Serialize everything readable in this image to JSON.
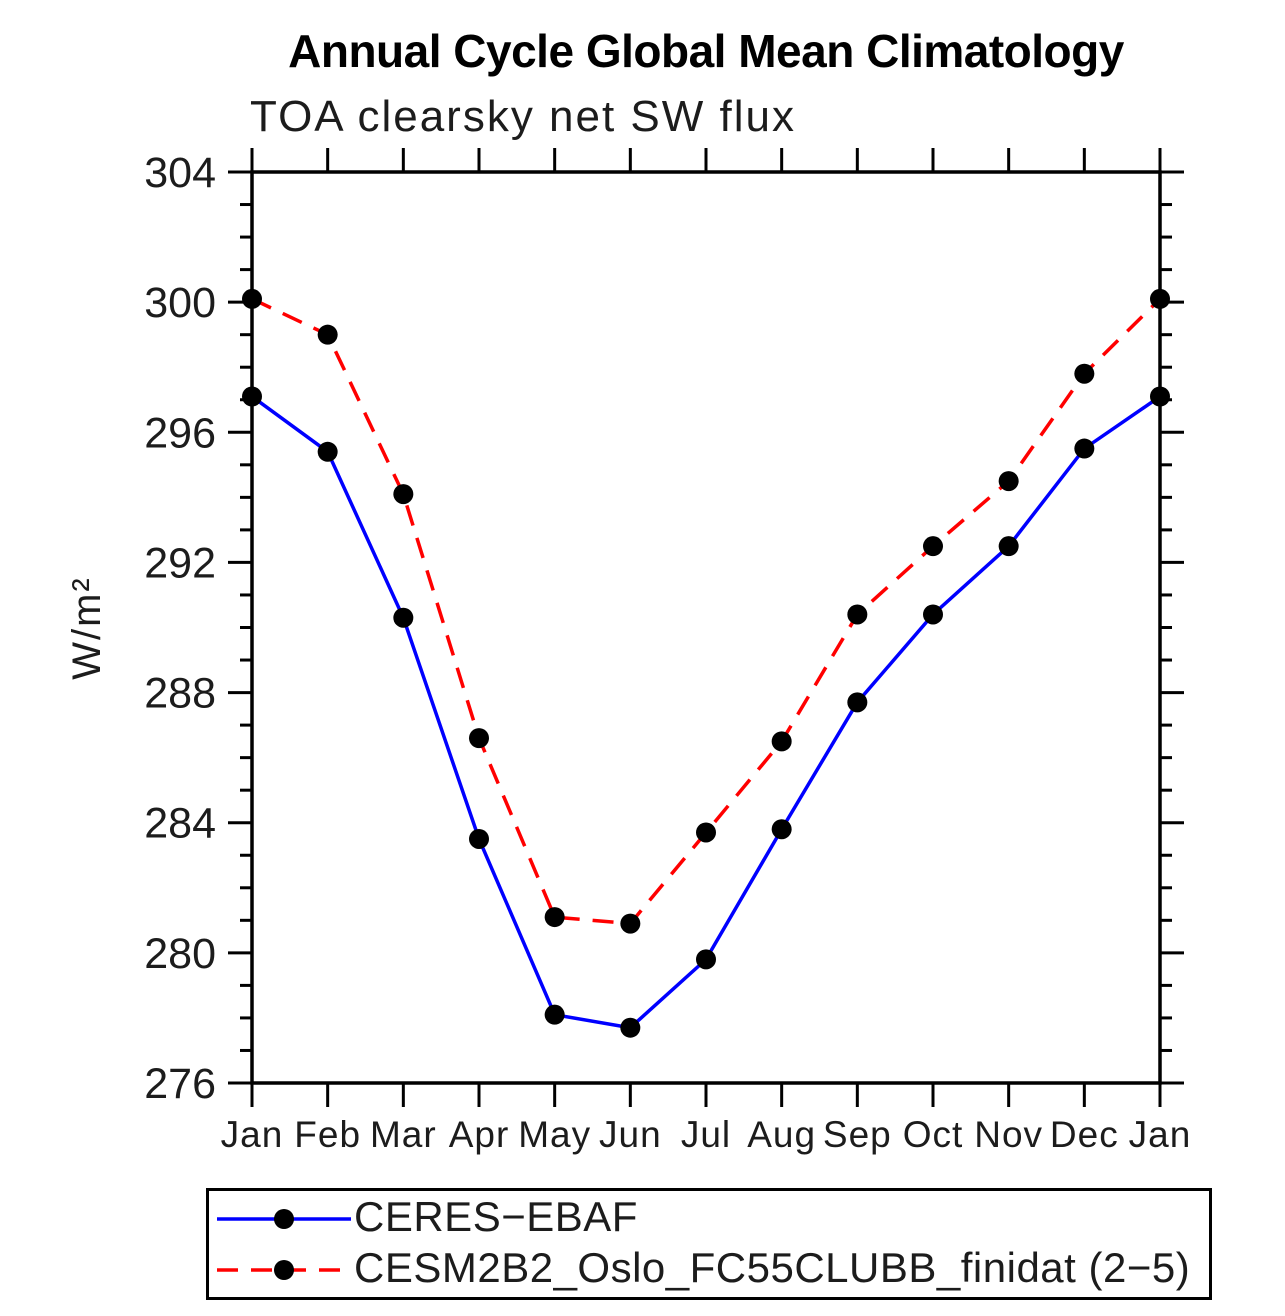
{
  "header": {
    "title": "Annual Cycle Global Mean Climatology",
    "subtitle": "TOA clearsky net SW flux"
  },
  "chart_data": {
    "type": "line",
    "title": "Annual Cycle Global Mean Climatology",
    "subtitle": "TOA clearsky net SW flux",
    "xlabel": "",
    "ylabel": "W/m²",
    "ylim": [
      276,
      304
    ],
    "ytick_major_interval": 4,
    "ytick_minor_interval": 1,
    "ytick_labels": [
      "276",
      "280",
      "284",
      "288",
      "292",
      "296",
      "300",
      "304"
    ],
    "categories": [
      "Jan",
      "Feb",
      "Mar",
      "Apr",
      "May",
      "Jun",
      "Jul",
      "Aug",
      "Sep",
      "Oct",
      "Nov",
      "Dec",
      "Jan"
    ],
    "grid": false,
    "legend_position": "bottom",
    "series": [
      {
        "name": "CERES−EBAF",
        "color": "#0000ff",
        "line_style": "solid",
        "marker": "circle",
        "marker_color": "#000000",
        "values": [
          297.1,
          295.4,
          290.3,
          283.5,
          278.1,
          277.7,
          279.8,
          283.8,
          287.7,
          290.4,
          292.5,
          295.5,
          297.1
        ]
      },
      {
        "name": "CESM2B2_Oslo_FC55CLUBB_finidat (2−5)",
        "color": "#ff0000",
        "line_style": "dashed",
        "marker": "circle",
        "marker_color": "#000000",
        "values": [
          300.1,
          299.0,
          294.1,
          286.6,
          281.1,
          280.9,
          283.7,
          286.5,
          290.4,
          292.5,
          294.5,
          297.8,
          300.1
        ]
      }
    ]
  },
  "style": {
    "axis_color": "#000000",
    "text_color": "#000000",
    "background": "#ffffff"
  }
}
